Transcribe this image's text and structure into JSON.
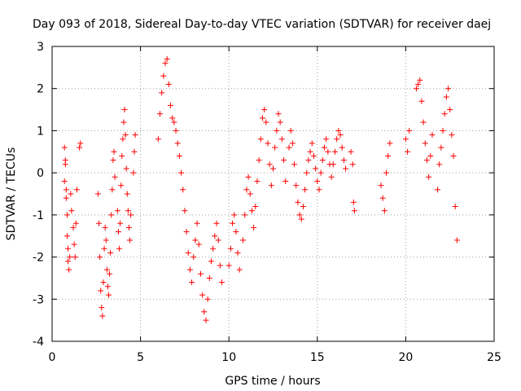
{
  "chart_data": {
    "type": "scatter",
    "title": "Day 093 of 2018, Sidereal Day-to-day VTEC variation (SDTVAR) for receiver daej",
    "xlabel": "GPS time / hours",
    "ylabel": "SDTVAR / TECUs",
    "xlim": [
      0,
      25
    ],
    "ylim": [
      -4,
      3
    ],
    "xticks": [
      "0",
      "5",
      "10",
      "15",
      "20",
      "25"
    ],
    "yticks": [
      "-4",
      "-3",
      "-2",
      "-1",
      "0",
      "1",
      "2",
      "3"
    ],
    "grid": true,
    "marker": "plus",
    "color": "#ff0000",
    "series": [
      {
        "name": "SDTVAR",
        "x": [
          0.7,
          0.75,
          0.8,
          0.85,
          0.9,
          0.95,
          1.0,
          0.7,
          0.75,
          0.8,
          0.85,
          0.9,
          1.05,
          1.1,
          1.2,
          1.25,
          1.3,
          1.35,
          1.4,
          1.55,
          1.6,
          2.6,
          2.65,
          2.7,
          2.75,
          2.8,
          2.85,
          2.9,
          2.95,
          3.0,
          3.05,
          3.1,
          3.15,
          3.2,
          3.25,
          3.3,
          3.35,
          3.4,
          3.45,
          3.5,
          3.55,
          3.7,
          3.75,
          3.8,
          3.85,
          3.9,
          3.95,
          4.0,
          4.05,
          4.1,
          4.15,
          4.2,
          4.25,
          4.3,
          4.35,
          4.4,
          4.45,
          4.6,
          4.65,
          4.7,
          6.0,
          6.1,
          6.2,
          6.3,
          6.4,
          6.5,
          6.6,
          6.7,
          6.8,
          6.9,
          7.0,
          7.1,
          7.2,
          7.3,
          7.4,
          7.5,
          7.6,
          7.7,
          7.8,
          7.9,
          8.0,
          8.1,
          8.2,
          8.3,
          8.4,
          8.5,
          8.6,
          8.7,
          8.8,
          8.9,
          9.0,
          9.1,
          9.2,
          9.3,
          9.4,
          9.5,
          9.6,
          10.0,
          10.1,
          10.2,
          10.3,
          10.4,
          10.5,
          10.6,
          10.8,
          10.9,
          11.0,
          11.1,
          11.2,
          11.3,
          11.4,
          11.5,
          11.6,
          11.7,
          11.8,
          11.9,
          12.0,
          12.1,
          12.2,
          12.3,
          12.4,
          12.5,
          12.6,
          12.7,
          12.8,
          12.9,
          13.0,
          13.1,
          13.2,
          13.4,
          13.5,
          13.6,
          13.7,
          13.8,
          13.9,
          14.0,
          14.1,
          14.2,
          14.3,
          14.4,
          14.5,
          14.6,
          14.7,
          14.8,
          14.9,
          15.0,
          15.1,
          15.2,
          15.3,
          15.4,
          15.5,
          15.6,
          15.7,
          15.8,
          15.9,
          16.0,
          16.1,
          16.2,
          16.3,
          16.4,
          16.5,
          16.6,
          16.9,
          17.0,
          17.05,
          17.1,
          18.6,
          18.7,
          18.8,
          18.9,
          19.0,
          19.1,
          20.0,
          20.1,
          20.2,
          20.6,
          20.7,
          20.8,
          20.9,
          21.0,
          21.1,
          21.2,
          21.3,
          21.4,
          21.5,
          21.8,
          21.9,
          22.0,
          22.1,
          22.2,
          22.3,
          22.4,
          22.5,
          22.6,
          22.7,
          22.8,
          22.9
        ],
        "y": [
          0.6,
          0.2,
          -0.4,
          -1.0,
          -1.8,
          -2.3,
          -2.0,
          -0.2,
          0.3,
          -0.6,
          -1.5,
          -2.1,
          -0.5,
          -0.9,
          -1.3,
          -1.7,
          -2.0,
          -1.2,
          -0.4,
          0.6,
          0.7,
          -0.5,
          -1.2,
          -2.0,
          -2.8,
          -3.2,
          -3.4,
          -2.6,
          -1.8,
          -1.3,
          -1.6,
          -2.3,
          -2.7,
          -2.9,
          -2.4,
          -1.9,
          -1.0,
          -0.4,
          0.3,
          0.5,
          -0.1,
          -0.9,
          -1.4,
          -1.8,
          -1.2,
          -0.3,
          0.4,
          0.8,
          1.2,
          1.5,
          0.9,
          0.1,
          -0.5,
          -0.9,
          -1.3,
          -1.6,
          -1.0,
          0.0,
          0.5,
          0.9,
          0.8,
          1.4,
          1.9,
          2.3,
          2.6,
          2.7,
          2.1,
          1.6,
          1.3,
          1.2,
          1.0,
          0.7,
          0.4,
          0.0,
          -0.4,
          -0.9,
          -1.4,
          -1.9,
          -2.3,
          -2.6,
          -2.0,
          -1.6,
          -1.2,
          -1.7,
          -2.4,
          -2.9,
          -3.3,
          -3.5,
          -3.0,
          -2.5,
          -2.1,
          -1.8,
          -1.5,
          -1.2,
          -1.6,
          -2.2,
          -2.6,
          -2.2,
          -1.8,
          -1.2,
          -1.0,
          -1.4,
          -1.9,
          -2.3,
          -1.6,
          -1.0,
          -0.4,
          -0.1,
          -0.5,
          -0.9,
          -1.3,
          -0.8,
          -0.2,
          0.3,
          0.8,
          1.3,
          1.5,
          1.2,
          0.7,
          0.2,
          -0.3,
          0.1,
          0.6,
          1.0,
          1.4,
          1.2,
          0.8,
          0.3,
          -0.2,
          0.6,
          1.0,
          0.7,
          0.2,
          -0.3,
          -0.7,
          -1.0,
          -1.1,
          -0.8,
          -0.4,
          0.0,
          0.3,
          0.5,
          0.7,
          0.4,
          0.1,
          -0.2,
          -0.4,
          0.0,
          0.3,
          0.6,
          0.8,
          0.5,
          0.2,
          -0.1,
          0.2,
          0.5,
          0.8,
          1.0,
          0.9,
          0.6,
          0.3,
          0.1,
          0.5,
          0.2,
          -0.7,
          -0.9,
          -0.3,
          -0.6,
          -0.9,
          0.0,
          0.4,
          0.7,
          0.8,
          0.5,
          1.0,
          2.0,
          2.1,
          2.2,
          1.7,
          1.2,
          0.7,
          0.3,
          -0.1,
          0.4,
          0.9,
          -0.4,
          0.2,
          0.6,
          1.0,
          1.4,
          1.8,
          2.0,
          1.5,
          0.9,
          0.4,
          -0.8,
          -1.6
        ]
      }
    ]
  }
}
